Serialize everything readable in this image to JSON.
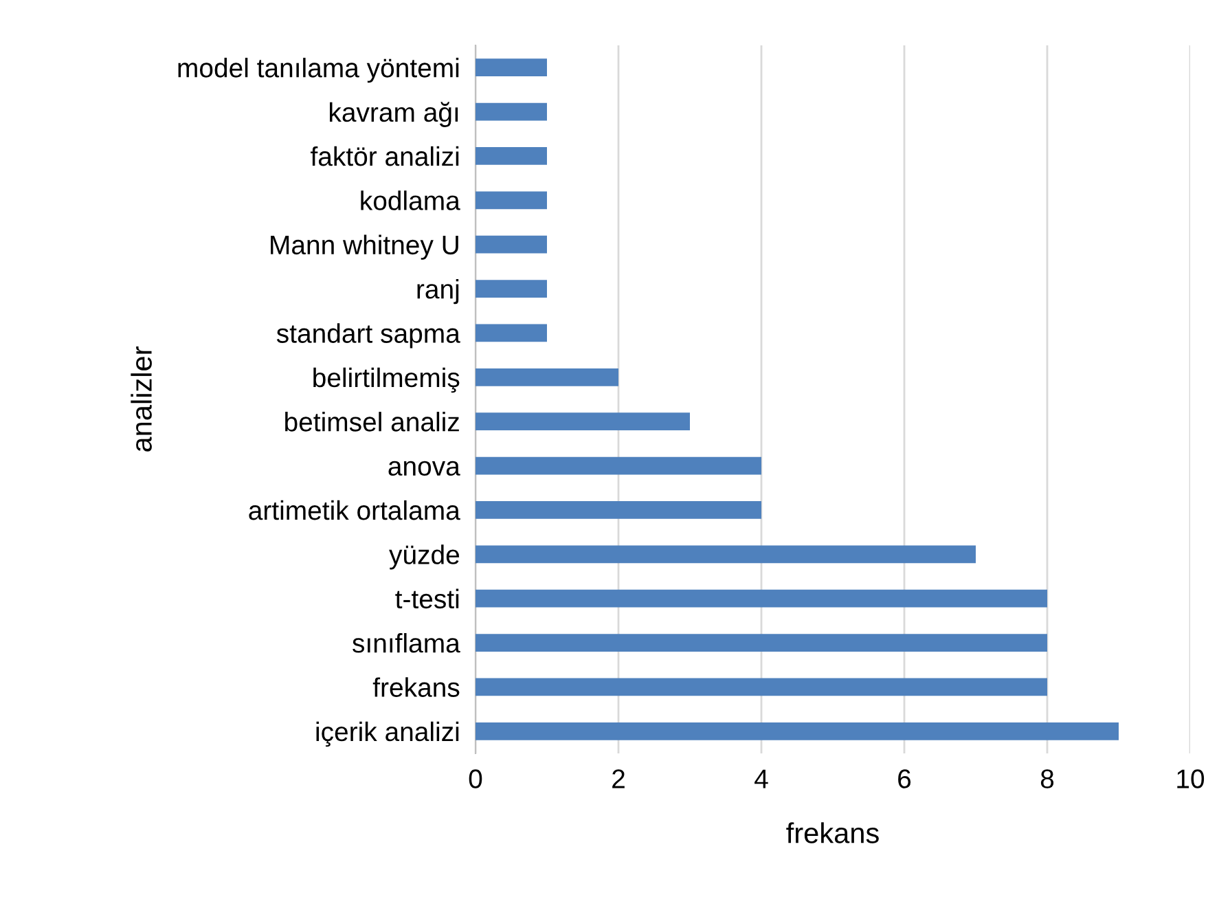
{
  "chart_data": {
    "type": "bar",
    "orientation": "horizontal",
    "xlabel": "frekans",
    "ylabel": "analizler",
    "categories": [
      "model tanılama yöntemi",
      "kavram ağı",
      "faktör analizi",
      "kodlama",
      "Mann whitney U",
      "ranj",
      "standart sapma",
      "belirtilmemiş",
      "betimsel analiz",
      "anova",
      "artimetik ortalama",
      "yüzde",
      "t-testi",
      "sınıflama",
      "frekans",
      "içerik analizi"
    ],
    "values": [
      1,
      1,
      1,
      1,
      1,
      1,
      1,
      2,
      3,
      4,
      4,
      7,
      8,
      8,
      8,
      9
    ],
    "color": "#4f81bd",
    "xlim": [
      0,
      10
    ],
    "xticks": [
      0,
      2,
      4,
      6,
      8,
      10
    ],
    "grid": "x",
    "legend": false
  }
}
